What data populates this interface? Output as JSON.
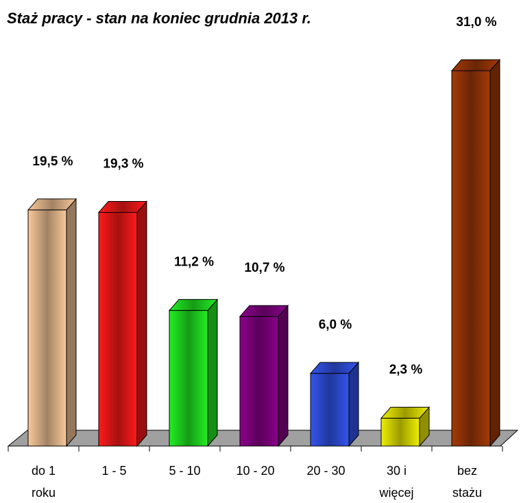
{
  "chart_data": {
    "type": "bar3d",
    "title": "Staż pracy - stan na koniec grudnia 2013 r.",
    "categories": [
      "do 1 roku",
      "1 - 5",
      "5 - 10",
      "10 - 20",
      "20 - 30",
      "30 i więcej",
      "bez stażu"
    ],
    "values": [
      19.5,
      19.3,
      11.2,
      10.7,
      6.0,
      2.3,
      31.0
    ],
    "value_labels": [
      "19,5 %",
      "19,3 %",
      "11,2 %",
      "10,7 %",
      "6,0 %",
      "2,3 %",
      "31,0 %"
    ],
    "colors": [
      "#f9c99a",
      "#ff1a1a",
      "#22ee22",
      "#8b008b",
      "#3355ee",
      "#eeee00",
      "#a33a08"
    ],
    "ylim": [
      0,
      31
    ]
  }
}
